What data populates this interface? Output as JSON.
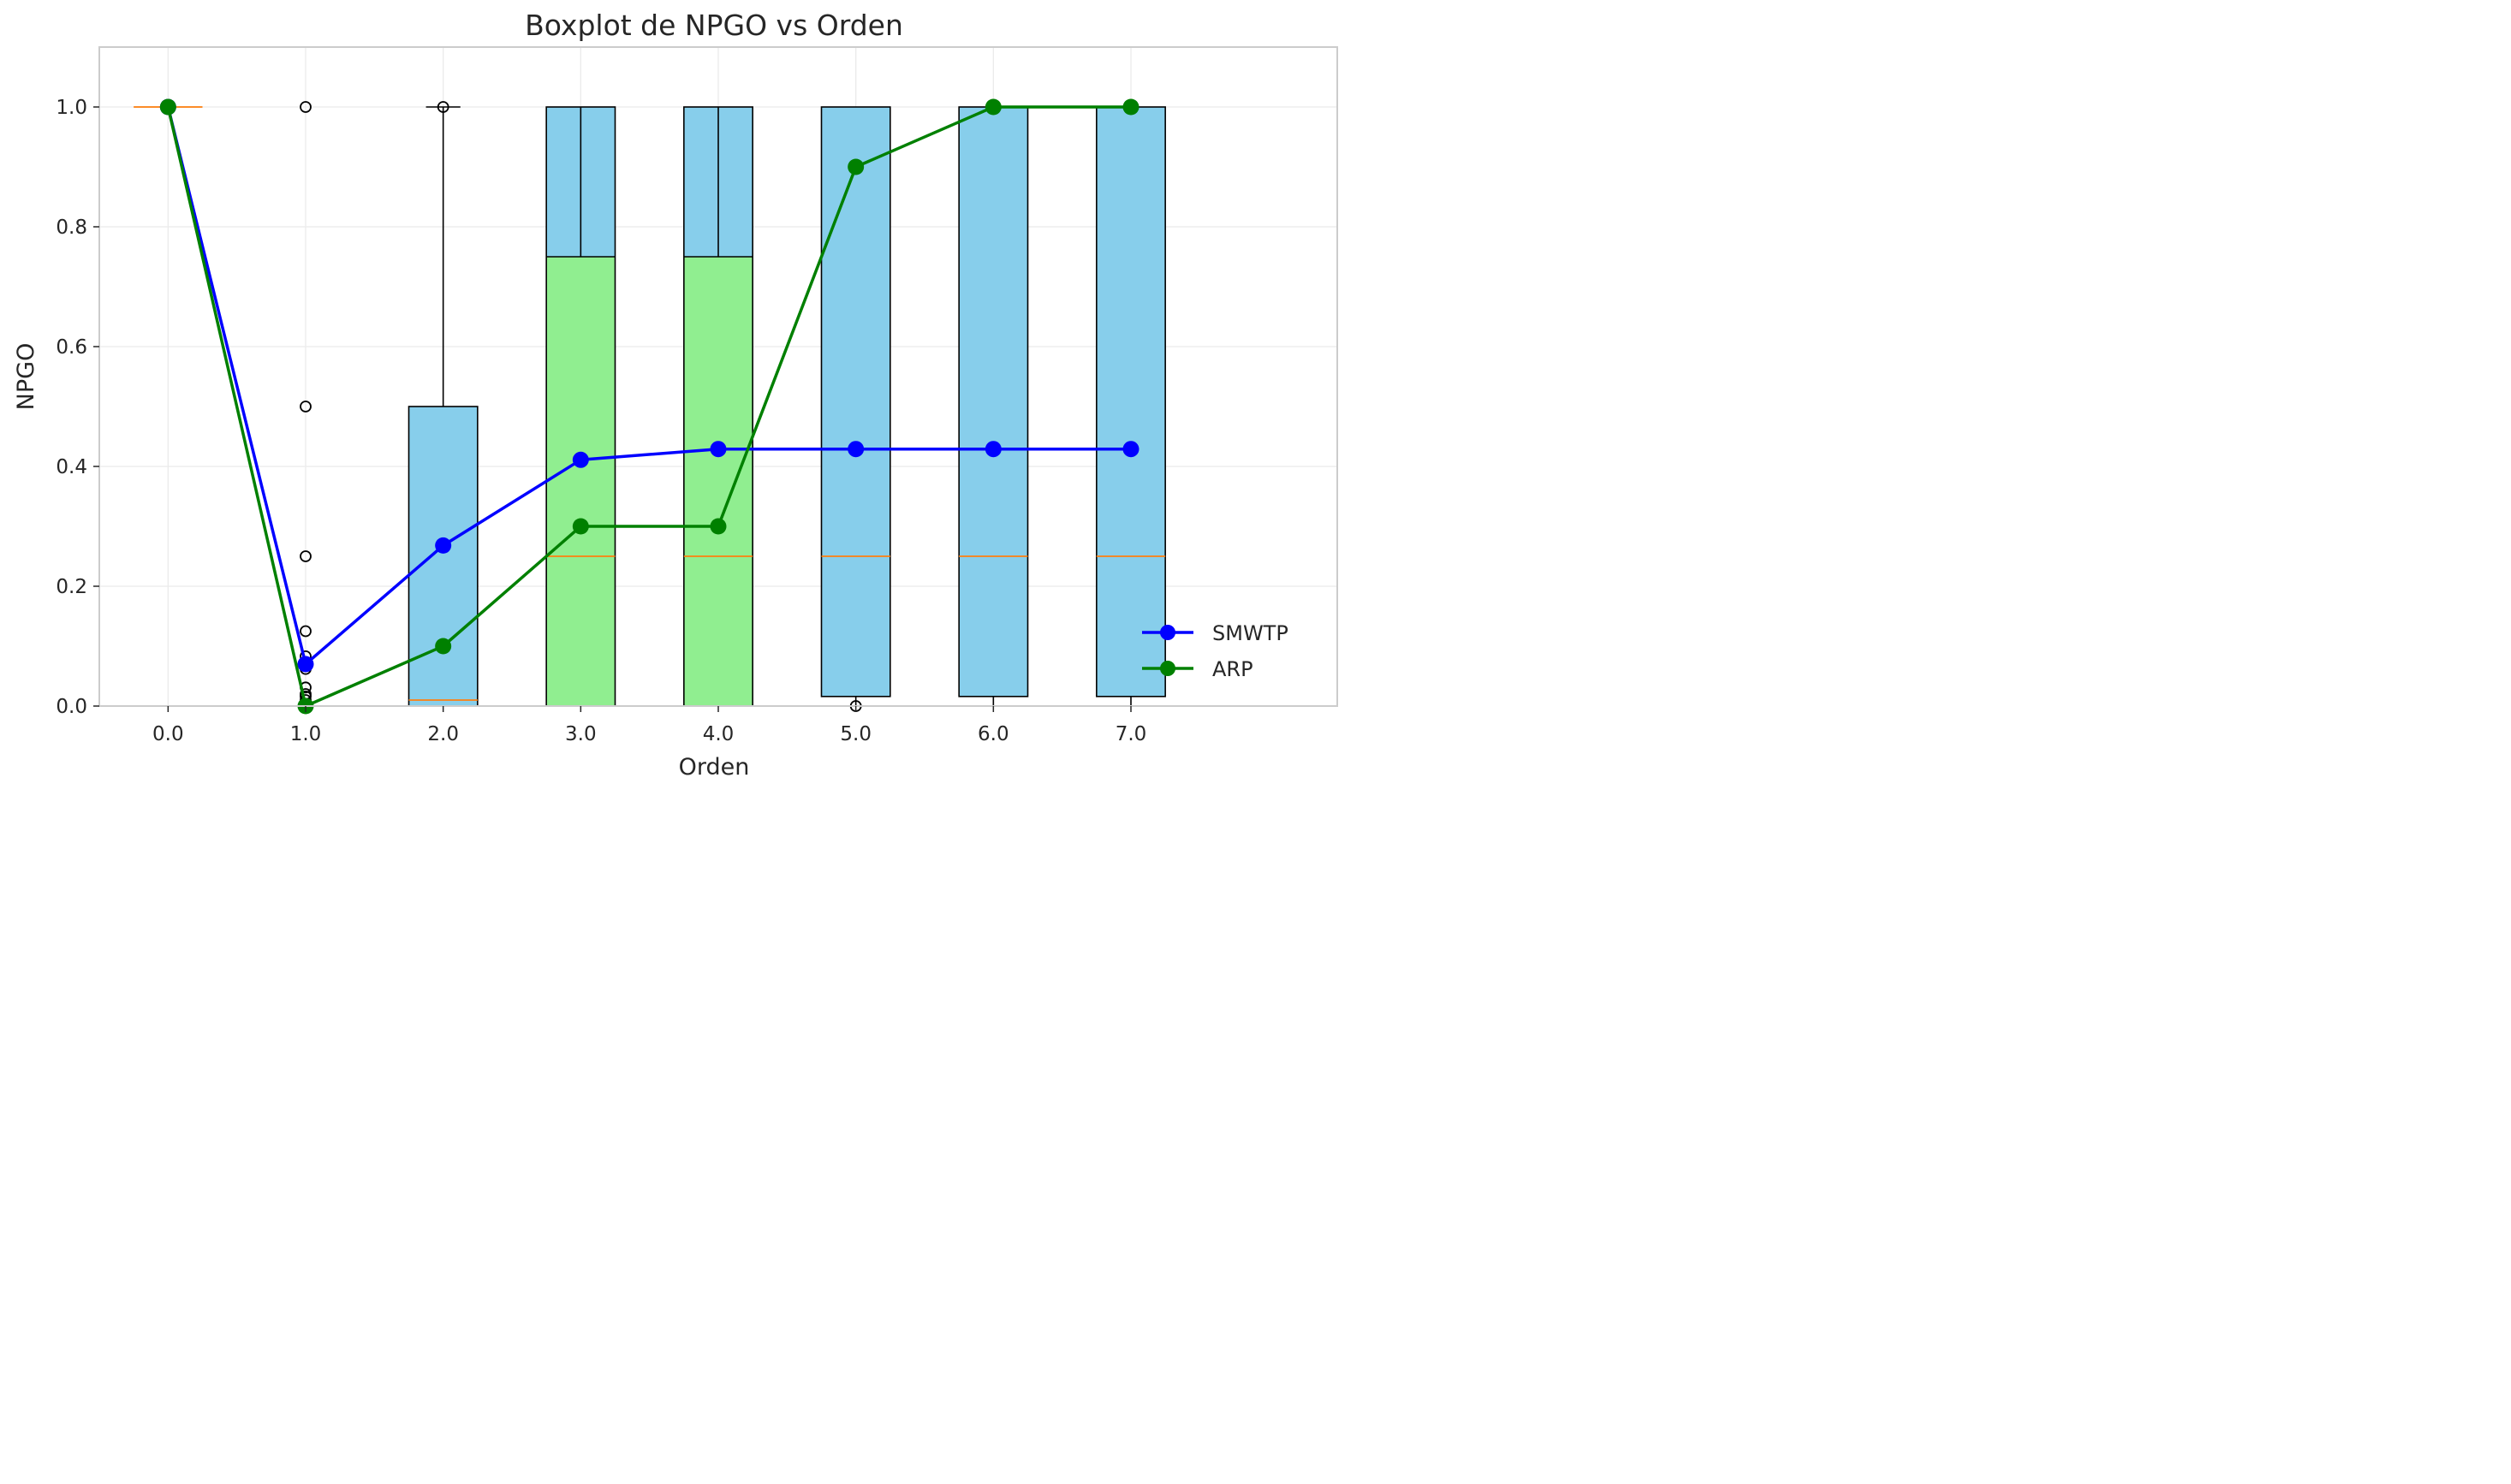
{
  "chart_data": {
    "type": "box",
    "title": "Boxplot de NPGO vs Orden",
    "xlabel": "Orden",
    "ylabel": "NPGO",
    "xlim": [
      -0.5,
      8.5
    ],
    "ylim": [
      0,
      1.1
    ],
    "x_ticks": [
      0,
      1,
      2,
      3,
      4,
      5,
      6,
      7
    ],
    "x_tick_labels": [
      "0.0",
      "1.0",
      "2.0",
      "3.0",
      "4.0",
      "5.0",
      "6.0",
      "7.0"
    ],
    "y_ticks": [
      0,
      0.2,
      0.4,
      0.6,
      0.8,
      1.0
    ],
    "y_tick_labels": [
      "0.0",
      "0.2",
      "0.4",
      "0.6",
      "0.8",
      "1.0"
    ],
    "grid": true,
    "legend_position": "lower-right",
    "box_colors": {
      "default": "#87ceeb",
      "highlight": "#90ee90",
      "median": "#ff7f0e",
      "edge": "#000000"
    },
    "boxes": [
      {
        "x": 0,
        "whislo": 1.0,
        "q1": 1.0,
        "med": 1.0,
        "q3": 1.0,
        "whishi": 1.0,
        "fliers": []
      },
      {
        "x": 1,
        "whislo": 0.0,
        "q1": 0.0,
        "med": 0.0,
        "q3": 0.0,
        "whishi": 0.0,
        "fliers": [
          1.0,
          0.5,
          0.25,
          0.125,
          0.083,
          0.062,
          0.031,
          0.02,
          0.016,
          0.01
        ]
      },
      {
        "x": 2,
        "whislo": 0.0,
        "q1": 0.0,
        "med": 0.01,
        "q3": 0.5,
        "whishi": 1.0,
        "fliers": [
          1.0
        ]
      },
      {
        "x": 3,
        "whislo": 0.0,
        "q1": 0.0,
        "med": 0.25,
        "q3": 1.0,
        "whishi": 1.0,
        "fliers": [],
        "split": 0.75,
        "split_x": 3.0
      },
      {
        "x": 4,
        "whislo": 0.0,
        "q1": 0.0,
        "med": 0.25,
        "q3": 1.0,
        "whishi": 1.0,
        "fliers": [],
        "split": 0.75,
        "split_x": 4.0
      },
      {
        "x": 5,
        "whislo": 0.0,
        "q1": 0.016,
        "med": 0.25,
        "q3": 1.0,
        "whishi": 1.0,
        "fliers": [
          0.0
        ]
      },
      {
        "x": 6,
        "whislo": 0.0,
        "q1": 0.016,
        "med": 0.25,
        "q3": 1.0,
        "whishi": 1.0,
        "fliers": []
      },
      {
        "x": 7,
        "whislo": 0.0,
        "q1": 0.016,
        "med": 0.25,
        "q3": 1.0,
        "whishi": 1.0,
        "fliers": []
      }
    ],
    "series": [
      {
        "name": "SMWTP",
        "color": "#0000ff",
        "x": [
          0,
          1,
          2,
          3,
          4,
          5,
          6,
          7
        ],
        "values": [
          1.0,
          0.07,
          0.268,
          0.411,
          0.429,
          0.429,
          0.429,
          0.429
        ]
      },
      {
        "name": "ARP",
        "color": "#008000",
        "x": [
          0,
          1,
          2,
          3,
          4,
          5,
          6,
          7
        ],
        "values": [
          1.0,
          0.0,
          0.1,
          0.3,
          0.3,
          0.9,
          1.0,
          1.0
        ]
      }
    ]
  }
}
